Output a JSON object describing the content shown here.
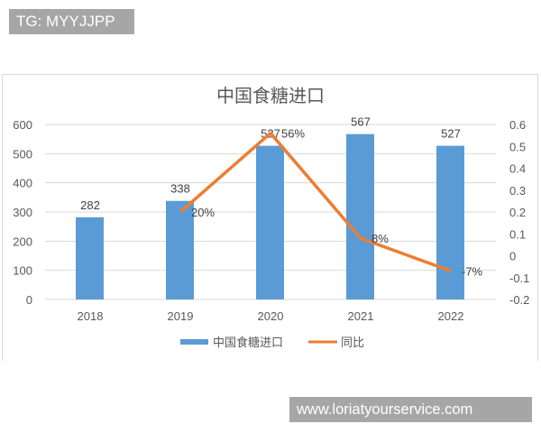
{
  "watermarks": {
    "top": "TG: MYYJJPP",
    "bottom": "www.loriatyourservice.com"
  },
  "colors": {
    "bar": "#5b9bd5",
    "line": "#ed7d31",
    "grid": "#d9d9d9",
    "text": "#595959",
    "watermark_bg": "#a6a6a6"
  },
  "chart_data": {
    "type": "bar+line",
    "title": "中国食糖进口",
    "categories": [
      "2018",
      "2019",
      "2020",
      "2021",
      "2022"
    ],
    "series": [
      {
        "name": "中国食糖进口",
        "type": "bar",
        "axis": "left",
        "values": [
          282,
          338,
          527,
          567,
          527
        ],
        "labels": [
          "282",
          "338",
          "527",
          "567",
          "527"
        ]
      },
      {
        "name": "同比",
        "type": "line",
        "axis": "right",
        "values": [
          null,
          0.2,
          0.56,
          0.08,
          -0.07
        ],
        "labels": [
          "",
          "20%",
          "56%",
          "8%",
          "-7%"
        ]
      }
    ],
    "left_axis": {
      "ylim": [
        0,
        600
      ],
      "ticks": [
        "0",
        "100",
        "200",
        "300",
        "400",
        "500",
        "600"
      ]
    },
    "right_axis": {
      "ylim": [
        -0.2,
        0.6
      ],
      "ticks": [
        "-0.2",
        "-0.1",
        "0",
        "0.1",
        "0.2",
        "0.3",
        "0.4",
        "0.5",
        "0.6"
      ]
    },
    "xlabel": "",
    "ylabel": "",
    "grid": true,
    "legend_position": "bottom",
    "legend": [
      "中国食糖进口",
      "同比"
    ]
  }
}
